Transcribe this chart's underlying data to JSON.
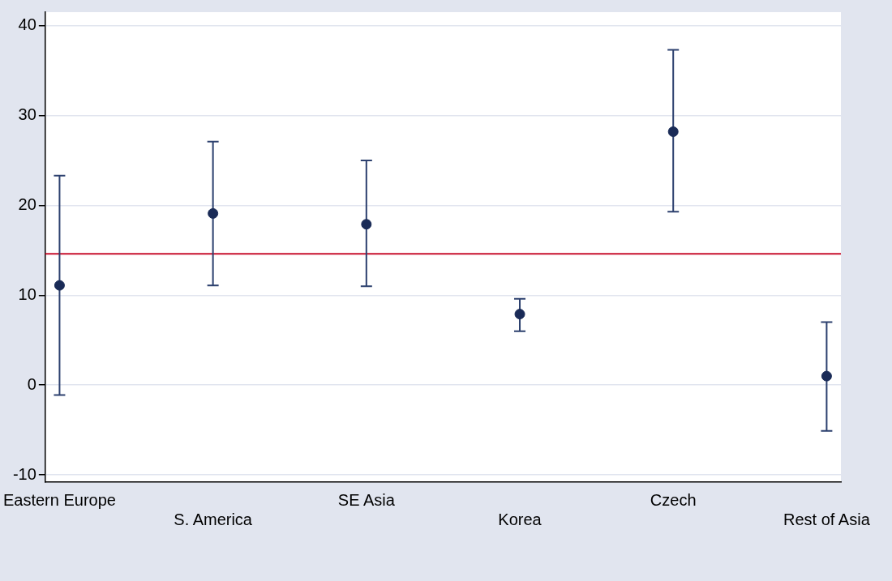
{
  "chart_data": {
    "type": "scatter",
    "categories": [
      "Eastern Europe",
      "S. America",
      "SE Asia",
      "Korea",
      "Czech",
      "Rest of Asia"
    ],
    "series": [
      {
        "color": "#1a2b57",
        "values": [
          11.1,
          19.1,
          17.9,
          7.9,
          28.2,
          1.0
        ],
        "errors": [
          [
            -1.1,
            23.3
          ],
          [
            11.1,
            27.1
          ],
          [
            11.0,
            25.0
          ],
          [
            6.0,
            9.6
          ],
          [
            19.3,
            37.3
          ],
          [
            -5.1,
            7.0
          ]
        ]
      }
    ],
    "ylim": [
      -10.8,
      41.5
    ],
    "yticks": [
      -10,
      0,
      10,
      20,
      30,
      40
    ],
    "ref_lines": [
      {
        "axis": "y",
        "value": 14.6,
        "color": "#c8102e"
      }
    ],
    "grid": "y",
    "legend": false,
    "marker": "circle"
  }
}
